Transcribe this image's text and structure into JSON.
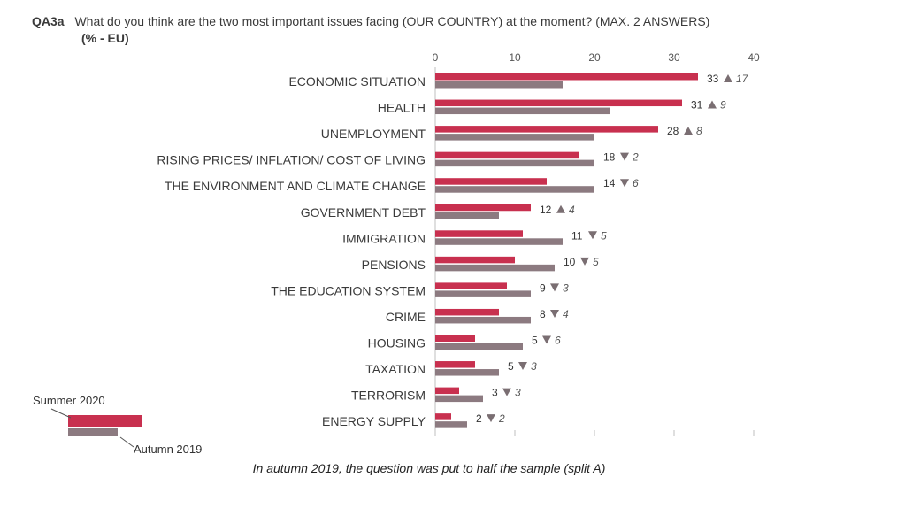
{
  "header": {
    "question_id": "QA3a",
    "question_text": "What do you think are the two most important issues facing (OUR COUNTRY) at the moment? (MAX. 2 ANSWERS)",
    "unit": "(% - EU)"
  },
  "footnote": "In autumn 2019, the question was put to half the sample (split A)",
  "colors": {
    "summer_2020": "#c8304f",
    "autumn_2019": "#8c7a80",
    "up_arrow": "#7a6e72",
    "down_arrow": "#7a6e72",
    "axis": "#bfbfbf",
    "label_text": "#3a3a3a"
  },
  "chart_data": {
    "type": "bar",
    "orientation": "horizontal",
    "title": "",
    "xlabel": "",
    "ylabel": "",
    "xlim": [
      0,
      40
    ],
    "x_ticks": [
      0,
      10,
      20,
      30,
      40
    ],
    "grid": false,
    "legend_position": "bottom-left",
    "categories": [
      "ECONOMIC SITUATION",
      "HEALTH",
      "UNEMPLOYMENT",
      "RISING PRICES/ INFLATION/ COST OF LIVING",
      "THE ENVIRONMENT AND CLIMATE CHANGE",
      "GOVERNMENT DEBT",
      "IMMIGRATION",
      "PENSIONS",
      "THE EDUCATION SYSTEM",
      "CRIME",
      "HOUSING",
      "TAXATION",
      "TERRORISM",
      "ENERGY SUPPLY"
    ],
    "series": [
      {
        "name": "Summer 2020",
        "values": [
          33,
          31,
          28,
          18,
          14,
          12,
          11,
          10,
          9,
          8,
          5,
          5,
          3,
          2
        ]
      },
      {
        "name": "Autumn 2019",
        "values": [
          16,
          22,
          20,
          20,
          20,
          8,
          16,
          15,
          12,
          12,
          11,
          8,
          6,
          4
        ]
      }
    ],
    "change_direction": [
      "up",
      "up",
      "up",
      "down",
      "down",
      "up",
      "down",
      "down",
      "down",
      "down",
      "down",
      "down",
      "down",
      "down"
    ],
    "change_values": [
      "17",
      "9",
      "8",
      "2",
      "6",
      "4",
      "5",
      "5",
      "3",
      "4",
      "6",
      "3",
      "3",
      "2"
    ]
  }
}
